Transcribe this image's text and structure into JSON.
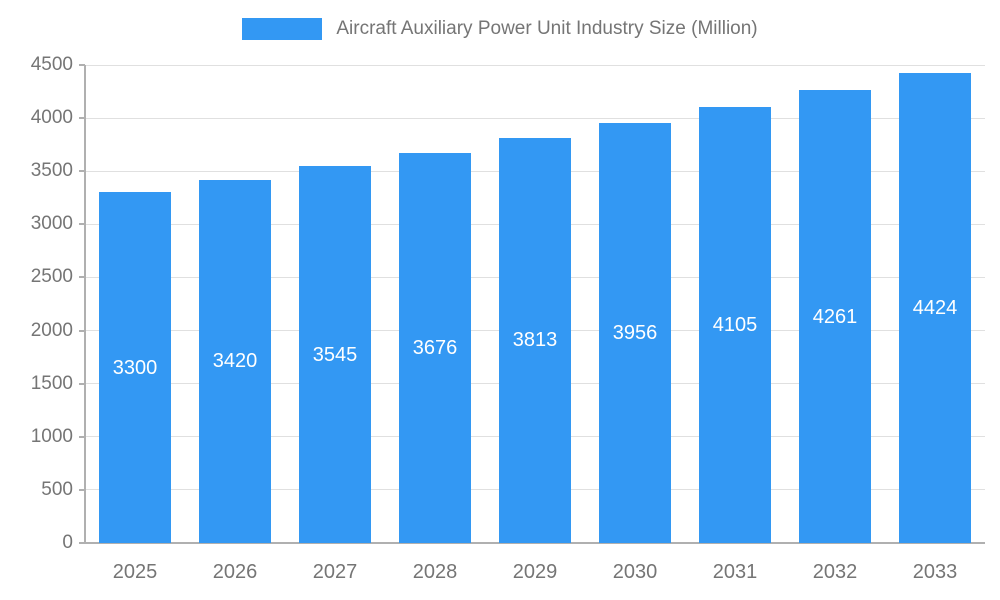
{
  "legend": {
    "label": "Aircraft Auxiliary Power Unit Industry Size (Million)"
  },
  "chart_data": {
    "type": "bar",
    "title": "Aircraft Auxiliary Power Unit Industry Size (Million)",
    "categories": [
      "2025",
      "2026",
      "2027",
      "2028",
      "2029",
      "2030",
      "2031",
      "2032",
      "2033"
    ],
    "values": [
      3300,
      3420,
      3545,
      3676,
      3813,
      3956,
      4105,
      4261,
      4424
    ],
    "xlabel": "",
    "ylabel": "",
    "ylim": [
      0,
      4500
    ],
    "ytick_interval": 500,
    "ytick_labels": [
      "0",
      "500",
      "1000",
      "1500",
      "2000",
      "2500",
      "3000",
      "3500",
      "4000",
      "4500"
    ],
    "grid": true,
    "legend_position": "top",
    "bar_color": "#3398f3",
    "value_label_color": "#ffffff",
    "value_labels_shown": true
  },
  "colors": {
    "bar": "#3398f3",
    "axis_text": "#757575",
    "gridline": "#e0e0e0",
    "axis_line": "#b0b0b0",
    "background": "#ffffff"
  }
}
